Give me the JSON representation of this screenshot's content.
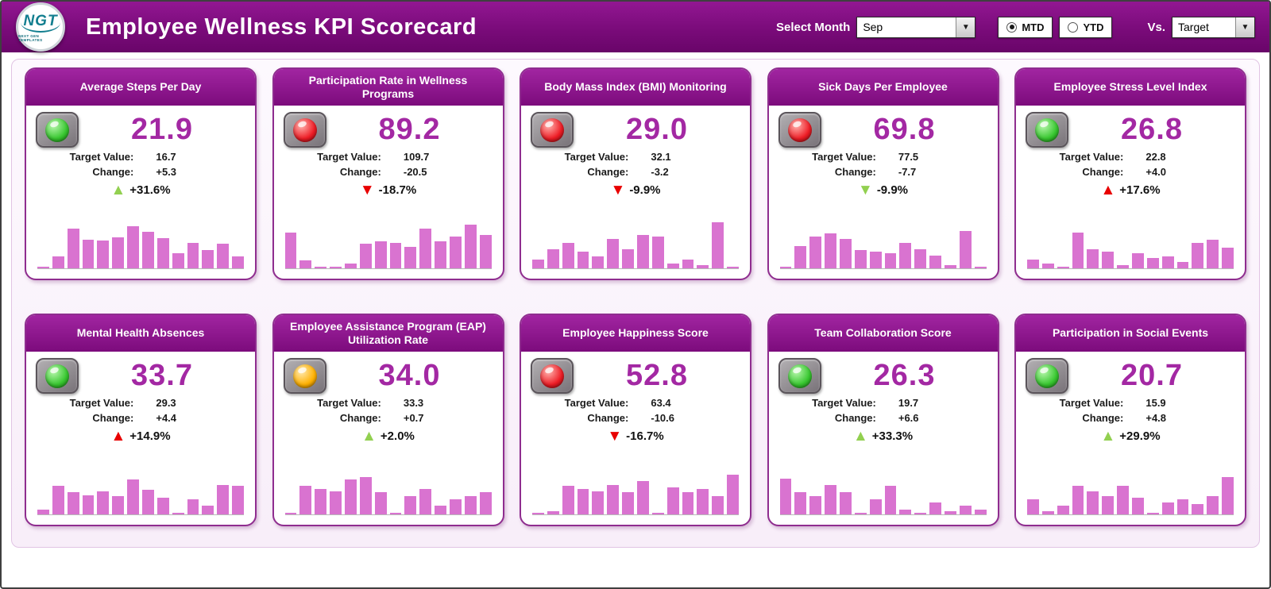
{
  "header": {
    "title": "Employee Wellness KPI Scorecard",
    "logo_text": "NGT",
    "logo_subtext": "NEXT GEN TEMPLATES",
    "select_month_label": "Select Month",
    "month_value": "Sep",
    "mtd_label": "MTD",
    "ytd_label": "YTD",
    "vs_label": "Vs.",
    "vs_value": "Target",
    "dropdown_arrow": "▼"
  },
  "labels": {
    "target_value": "Target Value:",
    "change": "Change:"
  },
  "colors": {
    "header_purple": "#7a0b7a",
    "card_border": "#8f2d8f",
    "value_purple": "#a328a3",
    "bar_pink": "#d973d0",
    "trend_green": "#92d050",
    "trend_red": "#e80000",
    "light_green": "#37c72f",
    "light_red": "#ee1c25",
    "light_amber": "#ffb100"
  },
  "cards": [
    {
      "title": "Average Steps Per Day",
      "status": "green",
      "value": "21.9",
      "target": "16.7",
      "change": "+5.3",
      "pct": "+31.6%",
      "trend": "up",
      "trend_color": "green",
      "bars": [
        3,
        18,
        62,
        45,
        43,
        48,
        66,
        57,
        47,
        24,
        40,
        28,
        38,
        18
      ]
    },
    {
      "title": "Participation Rate in Wellness Programs",
      "status": "red",
      "value": "89.2",
      "target": "109.7",
      "change": "-20.5",
      "pct": "-18.7%",
      "trend": "down",
      "trend_color": "red",
      "bars": [
        55,
        12,
        3,
        2,
        8,
        38,
        42,
        40,
        33,
        62,
        42,
        50,
        68,
        52
      ]
    },
    {
      "title": "Body Mass Index (BMI) Monitoring",
      "status": "red",
      "value": "29.0",
      "target": "32.1",
      "change": "-3.2",
      "pct": "-9.9%",
      "trend": "down",
      "trend_color": "red",
      "bars": [
        14,
        30,
        40,
        26,
        18,
        46,
        30,
        52,
        50,
        8,
        14,
        5,
        72,
        3
      ]
    },
    {
      "title": "Sick Days Per Employee",
      "status": "red",
      "value": "69.8",
      "target": "77.5",
      "change": "-7.7",
      "pct": "-9.9%",
      "trend": "down",
      "trend_color": "green",
      "bars": [
        3,
        34,
        50,
        54,
        46,
        28,
        26,
        24,
        40,
        30,
        20,
        5,
        58,
        2
      ]
    },
    {
      "title": "Employee Stress Level Index",
      "status": "green",
      "value": "26.8",
      "target": "22.8",
      "change": "+4.0",
      "pct": "+17.6%",
      "trend": "up",
      "trend_color": "red",
      "bars": [
        14,
        8,
        3,
        55,
        30,
        26,
        5,
        24,
        16,
        18,
        10,
        40,
        44,
        32
      ]
    },
    {
      "title": "Mental Health Absences",
      "status": "green",
      "value": "33.7",
      "target": "29.3",
      "change": "+4.4",
      "pct": "+14.9%",
      "trend": "up",
      "trend_color": "red",
      "bars": [
        8,
        44,
        34,
        30,
        36,
        28,
        54,
        38,
        26,
        3,
        24,
        14,
        46,
        44
      ]
    },
    {
      "title": "Employee Assistance Program (EAP) Utilization Rate",
      "status": "amber",
      "value": "34.0",
      "target": "33.3",
      "change": "+0.7",
      "pct": "+2.0%",
      "trend": "up",
      "trend_color": "green",
      "bars": [
        2,
        44,
        40,
        36,
        54,
        58,
        34,
        3,
        28,
        40,
        14,
        24,
        28,
        34
      ]
    },
    {
      "title": "Employee Happiness Score",
      "status": "red",
      "value": "52.8",
      "target": "63.4",
      "change": "-10.6",
      "pct": "-16.7%",
      "trend": "down",
      "trend_color": "red",
      "bars": [
        2,
        5,
        44,
        40,
        36,
        46,
        34,
        52,
        3,
        42,
        34,
        40,
        28,
        62
      ]
    },
    {
      "title": "Team Collaboration Score",
      "status": "green",
      "value": "26.3",
      "target": "19.7",
      "change": "+6.6",
      "pct": "+33.3%",
      "trend": "up",
      "trend_color": "green",
      "bars": [
        55,
        34,
        28,
        46,
        34,
        3,
        24,
        44,
        8,
        2,
        18,
        5,
        14,
        8
      ]
    },
    {
      "title": "Participation in Social Events",
      "status": "green",
      "value": "20.7",
      "target": "15.9",
      "change": "+4.8",
      "pct": "+29.9%",
      "trend": "up",
      "trend_color": "green",
      "bars": [
        24,
        5,
        14,
        44,
        36,
        28,
        44,
        26,
        3,
        18,
        24,
        16,
        28,
        58
      ]
    }
  ],
  "chart_data": [
    {
      "type": "bar",
      "title": "Average Steps Per Day",
      "current": 21.9,
      "target": 16.7,
      "change": 5.3,
      "change_pct": "+31.6%",
      "status_light": "green",
      "values_relative": [
        3,
        18,
        62,
        45,
        43,
        48,
        66,
        57,
        47,
        24,
        40,
        28,
        38,
        18
      ]
    },
    {
      "type": "bar",
      "title": "Participation Rate in Wellness Programs",
      "current": 89.2,
      "target": 109.7,
      "change": -20.5,
      "change_pct": "-18.7%",
      "status_light": "red",
      "values_relative": [
        55,
        12,
        3,
        2,
        8,
        38,
        42,
        40,
        33,
        62,
        42,
        50,
        68,
        52
      ]
    },
    {
      "type": "bar",
      "title": "Body Mass Index (BMI) Monitoring",
      "current": 29.0,
      "target": 32.1,
      "change": -3.2,
      "change_pct": "-9.9%",
      "status_light": "red",
      "values_relative": [
        14,
        30,
        40,
        26,
        18,
        46,
        30,
        52,
        50,
        8,
        14,
        5,
        72,
        3
      ]
    },
    {
      "type": "bar",
      "title": "Sick Days Per Employee",
      "current": 69.8,
      "target": 77.5,
      "change": -7.7,
      "change_pct": "-9.9%",
      "status_light": "red",
      "values_relative": [
        3,
        34,
        50,
        54,
        46,
        28,
        26,
        24,
        40,
        30,
        20,
        5,
        58,
        2
      ]
    },
    {
      "type": "bar",
      "title": "Employee Stress Level Index",
      "current": 26.8,
      "target": 22.8,
      "change": 4.0,
      "change_pct": "+17.6%",
      "status_light": "green",
      "values_relative": [
        14,
        8,
        3,
        55,
        30,
        26,
        5,
        24,
        16,
        18,
        10,
        40,
        44,
        32
      ]
    },
    {
      "type": "bar",
      "title": "Mental Health Absences",
      "current": 33.7,
      "target": 29.3,
      "change": 4.4,
      "change_pct": "+14.9%",
      "status_light": "green",
      "values_relative": [
        8,
        44,
        34,
        30,
        36,
        28,
        54,
        38,
        26,
        3,
        24,
        14,
        46,
        44
      ]
    },
    {
      "type": "bar",
      "title": "Employee Assistance Program (EAP) Utilization Rate",
      "current": 34.0,
      "target": 33.3,
      "change": 0.7,
      "change_pct": "+2.0%",
      "status_light": "amber",
      "values_relative": [
        2,
        44,
        40,
        36,
        54,
        58,
        34,
        3,
        28,
        40,
        14,
        24,
        28,
        34
      ]
    },
    {
      "type": "bar",
      "title": "Employee Happiness Score",
      "current": 52.8,
      "target": 63.4,
      "change": -10.6,
      "change_pct": "-16.7%",
      "status_light": "red",
      "values_relative": [
        2,
        5,
        44,
        40,
        36,
        46,
        34,
        52,
        3,
        42,
        34,
        40,
        28,
        62
      ]
    },
    {
      "type": "bar",
      "title": "Team Collaboration Score",
      "current": 26.3,
      "target": 19.7,
      "change": 6.6,
      "change_pct": "+33.3%",
      "status_light": "green",
      "values_relative": [
        55,
        34,
        28,
        46,
        34,
        3,
        24,
        44,
        8,
        2,
        18,
        5,
        14,
        8
      ]
    },
    {
      "type": "bar",
      "title": "Participation in Social Events",
      "current": 20.7,
      "target": 15.9,
      "change": 4.8,
      "change_pct": "+29.9%",
      "status_light": "green",
      "values_relative": [
        24,
        5,
        14,
        44,
        36,
        28,
        44,
        26,
        3,
        18,
        24,
        16,
        28,
        58
      ]
    }
  ]
}
